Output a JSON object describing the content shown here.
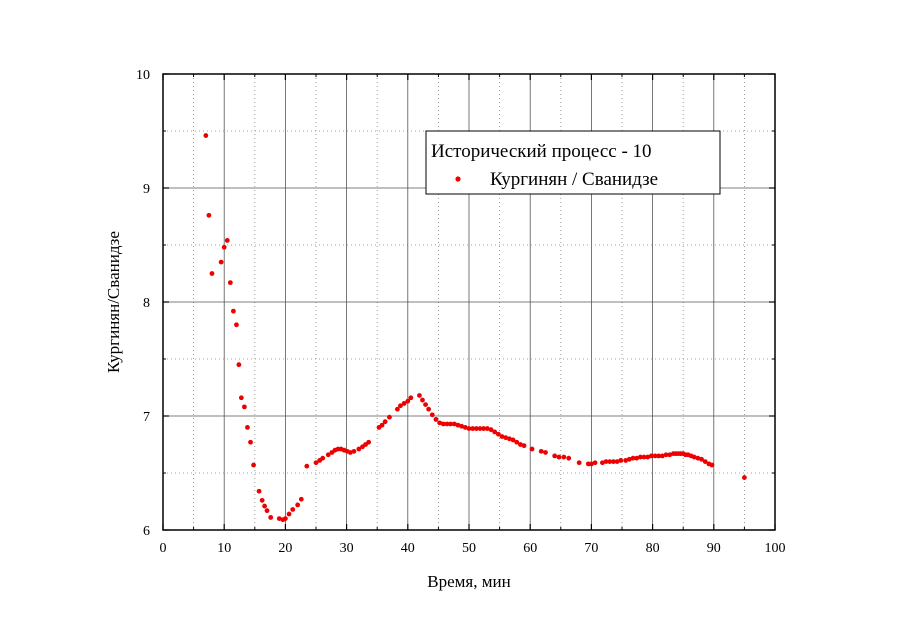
{
  "chart_data": {
    "type": "scatter",
    "title": "",
    "xlabel": "Время, мин",
    "ylabel": "Кургинян/Сванидзе",
    "xlim": [
      0,
      100
    ],
    "ylim": [
      6,
      10
    ],
    "xticks": [
      0,
      10,
      20,
      30,
      40,
      50,
      60,
      70,
      80,
      90,
      100
    ],
    "yticks": [
      6,
      7,
      8,
      9,
      10
    ],
    "grid": true,
    "legend": {
      "title": "Исторический процесс - 10",
      "placement": "top-right",
      "entries": [
        "Кургинян / Сванидзе"
      ]
    },
    "series": [
      {
        "name": "Кургинян / Сванидзе",
        "color": "#ee0000",
        "points": [
          [
            7.0,
            9.46
          ],
          [
            7.5,
            8.76
          ],
          [
            8.0,
            8.25
          ],
          [
            9.5,
            8.35
          ],
          [
            10.0,
            8.48
          ],
          [
            10.5,
            8.54
          ],
          [
            11.0,
            8.17
          ],
          [
            11.5,
            7.92
          ],
          [
            12.0,
            7.8
          ],
          [
            12.4,
            7.45
          ],
          [
            12.8,
            7.16
          ],
          [
            13.3,
            7.08
          ],
          [
            13.8,
            6.9
          ],
          [
            14.3,
            6.77
          ],
          [
            14.8,
            6.57
          ],
          [
            15.7,
            6.34
          ],
          [
            16.2,
            6.26
          ],
          [
            16.6,
            6.21
          ],
          [
            17.0,
            6.17
          ],
          [
            17.6,
            6.11
          ],
          [
            19.0,
            6.1
          ],
          [
            19.6,
            6.09
          ],
          [
            20.0,
            6.1
          ],
          [
            20.6,
            6.14
          ],
          [
            21.2,
            6.18
          ],
          [
            22.0,
            6.22
          ],
          [
            22.6,
            6.27
          ],
          [
            23.5,
            6.56
          ],
          [
            25.0,
            6.59
          ],
          [
            25.6,
            6.61
          ],
          [
            26.1,
            6.63
          ],
          [
            27.0,
            6.66
          ],
          [
            27.6,
            6.68
          ],
          [
            28.1,
            6.7
          ],
          [
            28.6,
            6.71
          ],
          [
            29.1,
            6.71
          ],
          [
            29.6,
            6.7
          ],
          [
            30.1,
            6.69
          ],
          [
            30.6,
            6.68
          ],
          [
            31.2,
            6.69
          ],
          [
            32.0,
            6.71
          ],
          [
            32.6,
            6.73
          ],
          [
            33.1,
            6.75
          ],
          [
            33.6,
            6.77
          ],
          [
            35.3,
            6.9
          ],
          [
            35.8,
            6.92
          ],
          [
            36.3,
            6.95
          ],
          [
            37.0,
            6.99
          ],
          [
            38.3,
            7.06
          ],
          [
            38.8,
            7.09
          ],
          [
            39.4,
            7.11
          ],
          [
            40.0,
            7.13
          ],
          [
            40.5,
            7.16
          ],
          [
            41.9,
            7.18
          ],
          [
            42.4,
            7.14
          ],
          [
            42.9,
            7.1
          ],
          [
            43.4,
            7.06
          ],
          [
            44.0,
            7.01
          ],
          [
            44.6,
            6.97
          ],
          [
            45.2,
            6.94
          ],
          [
            45.8,
            6.93
          ],
          [
            46.4,
            6.93
          ],
          [
            47.0,
            6.93
          ],
          [
            47.6,
            6.93
          ],
          [
            48.2,
            6.92
          ],
          [
            48.8,
            6.91
          ],
          [
            49.4,
            6.9
          ],
          [
            50.0,
            6.89
          ],
          [
            50.6,
            6.89
          ],
          [
            51.2,
            6.89
          ],
          [
            51.8,
            6.89
          ],
          [
            52.4,
            6.89
          ],
          [
            53.0,
            6.89
          ],
          [
            53.6,
            6.88
          ],
          [
            54.2,
            6.86
          ],
          [
            54.8,
            6.84
          ],
          [
            55.4,
            6.82
          ],
          [
            56.0,
            6.81
          ],
          [
            56.6,
            6.8
          ],
          [
            57.2,
            6.79
          ],
          [
            57.8,
            6.77
          ],
          [
            58.4,
            6.75
          ],
          [
            59.0,
            6.74
          ],
          [
            60.3,
            6.71
          ],
          [
            61.8,
            6.69
          ],
          [
            62.5,
            6.68
          ],
          [
            64.0,
            6.65
          ],
          [
            64.7,
            6.64
          ],
          [
            65.5,
            6.64
          ],
          [
            66.3,
            6.63
          ],
          [
            68.0,
            6.59
          ],
          [
            69.5,
            6.58
          ],
          [
            70.0,
            6.58
          ],
          [
            70.6,
            6.59
          ],
          [
            71.8,
            6.59
          ],
          [
            72.4,
            6.6
          ],
          [
            73.0,
            6.6
          ],
          [
            73.6,
            6.6
          ],
          [
            74.2,
            6.6
          ],
          [
            74.8,
            6.61
          ],
          [
            75.6,
            6.61
          ],
          [
            76.2,
            6.62
          ],
          [
            76.8,
            6.63
          ],
          [
            77.4,
            6.63
          ],
          [
            78.0,
            6.64
          ],
          [
            78.6,
            6.64
          ],
          [
            79.2,
            6.64
          ],
          [
            79.8,
            6.65
          ],
          [
            80.4,
            6.65
          ],
          [
            81.0,
            6.65
          ],
          [
            81.6,
            6.65
          ],
          [
            82.2,
            6.66
          ],
          [
            82.8,
            6.66
          ],
          [
            83.4,
            6.67
          ],
          [
            83.8,
            6.67
          ],
          [
            84.2,
            6.67
          ],
          [
            84.6,
            6.67
          ],
          [
            85.0,
            6.67
          ],
          [
            85.4,
            6.66
          ],
          [
            85.8,
            6.66
          ],
          [
            86.3,
            6.65
          ],
          [
            86.8,
            6.64
          ],
          [
            87.4,
            6.63
          ],
          [
            88.0,
            6.62
          ],
          [
            88.6,
            6.6
          ],
          [
            89.2,
            6.58
          ],
          [
            89.7,
            6.57
          ],
          [
            95.0,
            6.46
          ]
        ]
      }
    ]
  }
}
